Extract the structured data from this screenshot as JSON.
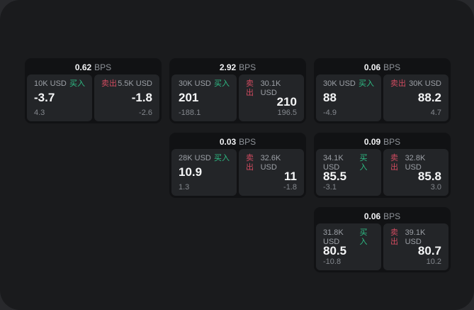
{
  "labels": {
    "bps_unit": "BPS",
    "buy": "买入",
    "sell": "卖出"
  },
  "colors": {
    "buy_green": "#2ebd85",
    "sell_red": "#d14b60",
    "panel_bg": "#1a1b1d",
    "card_bg": "#111214",
    "tile_bg": "#232528"
  },
  "cards": [
    {
      "bps": "0.62",
      "buy": {
        "amount": "10K USD",
        "price": "-3.7",
        "delta": "4.3"
      },
      "sell": {
        "amount": "5.5K USD",
        "price": "-1.8",
        "delta": "-2.6"
      }
    },
    {
      "bps": "2.92",
      "buy": {
        "amount": "30K USD",
        "price": "201",
        "delta": "-188.1"
      },
      "sell": {
        "amount": "30.1K USD",
        "price": "210",
        "delta": "196.5"
      }
    },
    {
      "bps": "0.06",
      "buy": {
        "amount": "30K USD",
        "price": "88",
        "delta": "-4.9"
      },
      "sell": {
        "amount": "30K USD",
        "price": "88.2",
        "delta": "4.7"
      }
    },
    {
      "bps": "0.03",
      "buy": {
        "amount": "28K USD",
        "price": "10.9",
        "delta": "1.3"
      },
      "sell": {
        "amount": "32.6K USD",
        "price": "11",
        "delta": "-1.8"
      }
    },
    {
      "bps": "0.09",
      "buy": {
        "amount": "34.1K USD",
        "price": "85.5",
        "delta": "-3.1"
      },
      "sell": {
        "amount": "32.8K USD",
        "price": "85.8",
        "delta": "3.0"
      }
    },
    {
      "bps": "0.06",
      "buy": {
        "amount": "31.8K USD",
        "price": "80.5",
        "delta": "-10.8"
      },
      "sell": {
        "amount": "39.1K USD",
        "price": "80.7",
        "delta": "10.2"
      }
    }
  ]
}
